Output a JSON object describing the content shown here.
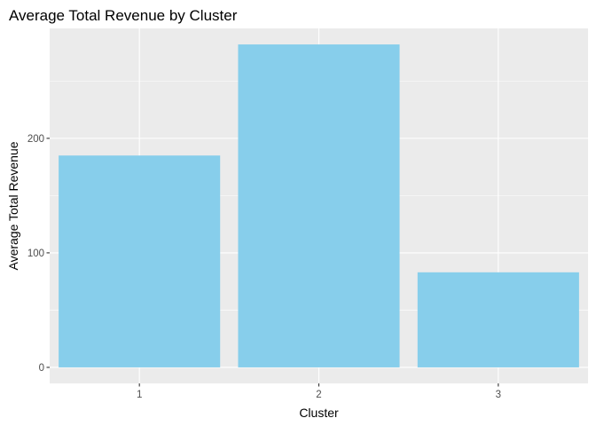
{
  "colors": {
    "panel_background": "#EBEBEB",
    "grid_major": "#FFFFFF",
    "bar_fill": "#87CEEB",
    "tick_mark": "#333333"
  },
  "chart_data": {
    "type": "bar",
    "title": "Average Total Revenue by Cluster",
    "xlabel": "Cluster",
    "ylabel": "Average Total Revenue",
    "categories": [
      "1",
      "2",
      "3"
    ],
    "values": [
      185,
      282,
      83
    ],
    "ylim": [
      -14,
      296
    ],
    "yticks": [
      0,
      100,
      200
    ],
    "ytick_labels": [
      "0",
      "100",
      "200"
    ],
    "grid": true,
    "legend": "none"
  }
}
